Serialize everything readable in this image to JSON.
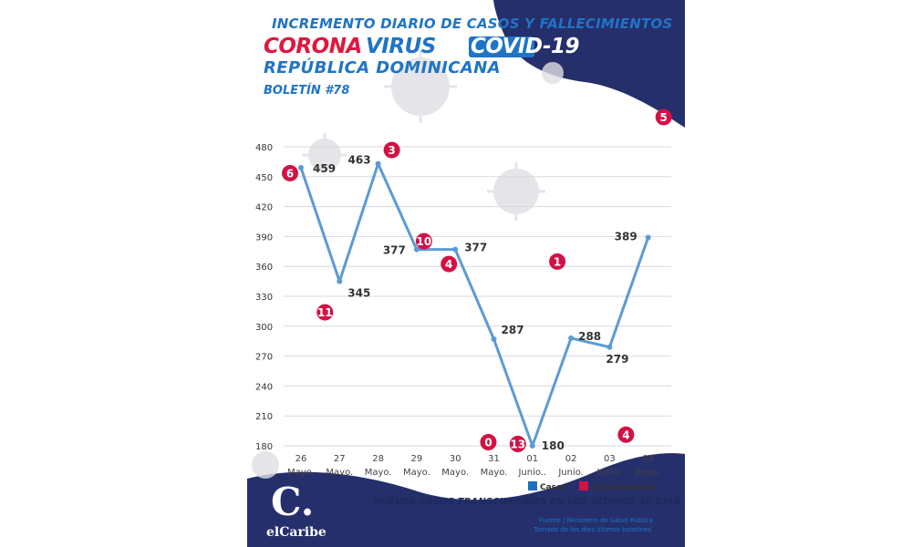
{
  "header": {
    "title_line1": "INCREMENTO DIARIO DE CASOS Y FALLECIMIENTOS",
    "title_corona": "CORONA",
    "title_virus": "VIRUS",
    "title_covid": "COVID-19",
    "title_country": "REPÚBLICA DOMINICANA",
    "bulletin": "BOLETÍN #78"
  },
  "chart_data": {
    "type": "line",
    "categories": [
      [
        "26",
        "Mayo."
      ],
      [
        "27",
        "Mayo."
      ],
      [
        "28",
        "Mayo."
      ],
      [
        "29",
        "Mayo."
      ],
      [
        "30",
        "Mayo."
      ],
      [
        "31",
        "Mayo."
      ],
      [
        "01",
        "Junio.."
      ],
      [
        "02",
        "Junio."
      ],
      [
        "03",
        "Junio."
      ],
      [
        "04",
        "Junio."
      ]
    ],
    "series": [
      {
        "name": "Casos",
        "values": [
          459,
          345,
          463,
          377,
          377,
          287,
          180,
          288,
          279,
          389
        ]
      },
      {
        "name": "Fallecimientos",
        "values": [
          6,
          11,
          3,
          10,
          4,
          0,
          13,
          1,
          4,
          5
        ]
      }
    ],
    "yticks": [
      180,
      210,
      240,
      270,
      300,
      330,
      360,
      390,
      420,
      450,
      480
    ],
    "ylim": [
      180,
      480
    ],
    "grid": true,
    "legend_placement": "bottom-right",
    "colors": {
      "casos": "#5b9bd5",
      "fallecimientos": "#d31145"
    }
  },
  "footer": {
    "subtitle": "NUEVOS CASOS TRANSCURRIDOS EN LOS ULTIMOS 10 DÍAS",
    "source_line1": "Fuente | Ministerio de Salud Pública",
    "source_line2": "Tomado de  los dies últimos boletines",
    "logo_mark": "C.",
    "logo_name": "elCaribe"
  }
}
